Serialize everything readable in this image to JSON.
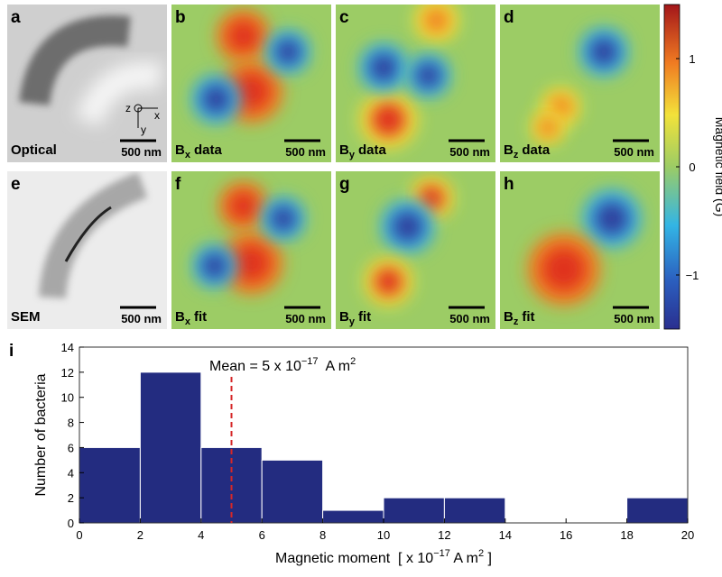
{
  "panels": [
    {
      "letter": "a",
      "label": {
        "main": "Optical"
      },
      "scale_bar": "500 nm",
      "axes": [
        "z",
        "x",
        "y"
      ]
    },
    {
      "letter": "b",
      "label": {
        "main": "B",
        "sub": "x",
        "rest": "data"
      },
      "scale_bar": "500 nm"
    },
    {
      "letter": "c",
      "label": {
        "main": "B",
        "sub": "y",
        "rest": "data"
      },
      "scale_bar": "500 nm"
    },
    {
      "letter": "d",
      "label": {
        "main": "B",
        "sub": "z",
        "rest": "data"
      },
      "scale_bar": "500 nm"
    },
    {
      "letter": "e",
      "label": {
        "main": "SEM"
      },
      "scale_bar": "500 nm"
    },
    {
      "letter": "f",
      "label": {
        "main": "B",
        "sub": "x",
        "rest": "fit"
      },
      "scale_bar": "500 nm"
    },
    {
      "letter": "g",
      "label": {
        "main": "B",
        "sub": "y",
        "rest": "fit"
      },
      "scale_bar": "500 nm"
    },
    {
      "letter": "h",
      "label": {
        "main": "B",
        "sub": "z",
        "rest": "fit"
      },
      "scale_bar": "500 nm"
    }
  ],
  "colorbar": {
    "label": "Magnetic field (G)",
    "lim": [
      -1.5,
      1.5
    ],
    "ticks": [
      1,
      0,
      {
        "value": -1,
        "label": "−1"
      }
    ]
  },
  "chart_data": {
    "type": "histogram",
    "panel_letter": "i",
    "bins": [
      0,
      2,
      4,
      6,
      8,
      10,
      12,
      14,
      16,
      18,
      20
    ],
    "values": [
      6,
      12,
      6,
      5,
      1,
      2,
      2,
      0,
      0,
      2
    ],
    "color": "#232c80",
    "xlim": [
      0,
      20
    ],
    "xticks": [
      0,
      2,
      4,
      6,
      8,
      10,
      12,
      14,
      16,
      18,
      20
    ],
    "ylim": [
      0,
      14
    ],
    "yticks": [
      0,
      2,
      4,
      6,
      8,
      10,
      12,
      14
    ],
    "ylabel": "Number of bacteria",
    "xlabel": [
      "Magnetic moment  [ x 10",
      "−17",
      " A m",
      "2",
      " ]"
    ],
    "mean": 5,
    "mean_color": "#d62728",
    "mean_label_before": "Mean = ",
    "mean_label_after": " x 10",
    "mean_label_exp": "−17",
    "mean_label_unit": "  A m",
    "mean_label_unit_exp": "2"
  }
}
